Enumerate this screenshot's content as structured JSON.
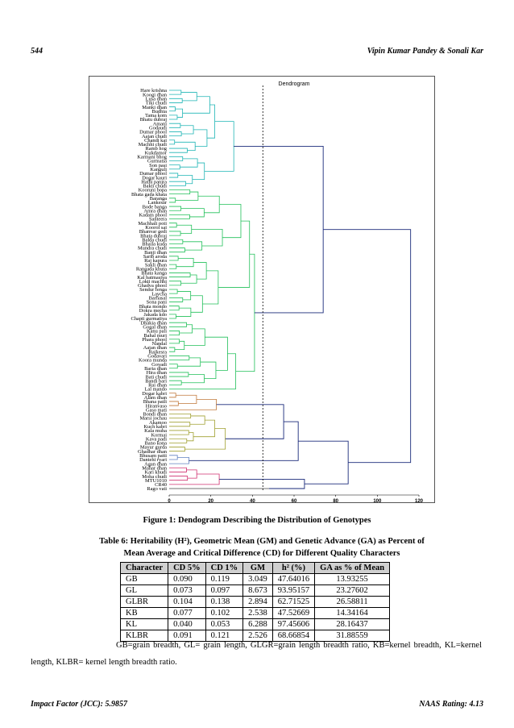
{
  "header": {
    "page_number": "544",
    "authors": "Vipin Kumar Pandey & Sonali Kar"
  },
  "figure": {
    "caption": "Figure 1: Dendogram Describing the Distribution of Genotypes",
    "chart_data": {
      "type": "dendrogram",
      "title": "Dendrogram",
      "xlabel": "Dissimilarity",
      "xlim": [
        0,
        120
      ],
      "x_ticks": [
        "0",
        "20",
        "40",
        "60",
        "80",
        "100",
        "120"
      ],
      "cut_line": 45,
      "clusters": [
        {
          "color": "#1fb5b5",
          "genotypes": [
            "Hare krishna",
            "Koogi dhan",
            "Lusa dhan",
            "Tiki chudi",
            "Manki dhan",
            "Budhia",
            "Tama kom",
            "Bhatu dubraj",
            "Amani",
            "Godaudi",
            "Dumar phool",
            "Aajan chudi",
            "Chandi kai",
            "Machhi chudi",
            "Ramb hog",
            "Kukdamor",
            "Karmani bhog",
            "Gurmatia",
            "Son pasi",
            "Kanguli",
            "Dumar phool",
            "Dogar kauri",
            "Hathi panjra",
            "Bakti chudi"
          ]
        },
        {
          "color": "#22c05a",
          "genotypes": [
            "Kooruni bopa",
            "Bhata gada khata",
            "Baranga",
            "Lankesar",
            "Bode banga",
            "Amra dhan",
            "Kadam phool",
            "Santeera",
            "Machhali poti",
            "Kooroi sai",
            "Bhanvar gedi",
            "Bhata dubraj",
            "Balda chudi",
            "Bhaila kuda",
            "Mundra chudi",
            "Banji dhan",
            "Sarib aroda",
            "Raj kapura",
            "Sakli dhan",
            "Rangada khuta",
            "Bhata kanga",
            "Kal batmasiya",
            "Lokti machhi",
            "Ghadva phool",
            "Sendur fenga",
            "Laycha",
            "Barhasal",
            "Sona pani",
            "Bhata mondo",
            "Dokra mecha",
            "Jakada kdo",
            "Chapti gurmatiya",
            "Dhakia dhan",
            "Gogal dhan",
            "Kanu pali",
            "Bahal muri",
            "Phara phool",
            "Nandal",
            "Aajan dhan",
            "Rajkesra",
            "Godavari",
            "Koora munda",
            "Govadi",
            "Baria dhan",
            "Hira dhan",
            "Bati chudi",
            "Bandi bari",
            "Rai dhan",
            "Lal mando"
          ]
        },
        {
          "color": "#c0783a",
          "genotypes": [
            "Dogar kabri",
            "Alam dhan",
            "Bhana patli",
            "Hiranvaso",
            "Gaso mati"
          ]
        },
        {
          "color": "#a0a030",
          "genotypes": [
            "Bondi dhan",
            "Marsi jochau",
            "Akamoo",
            "Kuch kabri",
            "Kala muha",
            "Kormai",
            "Kava padi",
            "Bano kona",
            "Mayur gurda",
            "Ghadhar dhan"
          ]
        },
        {
          "color": "#6080c0",
          "genotypes": [
            "Bhusam patti",
            "Dantehi ryari",
            "Agan dhan"
          ]
        },
        {
          "color": "#d03070",
          "genotypes": [
            "Mahar dhan",
            "Kari khudi",
            "Moha chudi",
            "MTU1010",
            "CR40"
          ]
        },
        {
          "color": "#404040",
          "genotypes": [
            "Rago vati"
          ]
        }
      ]
    }
  },
  "table": {
    "caption_line1": "Table 6: Heritability (H²), Geometric Mean (GM) and Genetic Advance (GA) as Percent of",
    "caption_line2": "Mean Average and Critical Difference (CD) for Different Quality Characters",
    "headers": [
      "Character",
      "CD 5%",
      "CD 1%",
      "GM",
      "h² (%)",
      "GA as % of Mean"
    ],
    "rows": [
      [
        "GB",
        "0.090",
        "0.119",
        "3.049",
        "47.64016",
        "13.93255"
      ],
      [
        "GL",
        "0.073",
        "0.097",
        "8.673",
        "93.95157",
        "23.27602"
      ],
      [
        "GLBR",
        "0.104",
        "0.138",
        "2.894",
        "62.71525",
        "26.58811"
      ],
      [
        "KB",
        "0.077",
        "0.102",
        "2.538",
        "47.52669",
        "14.34164"
      ],
      [
        "KL",
        "0.040",
        "0.053",
        "6.288",
        "97.45606",
        "28.16437"
      ],
      [
        "KLBR",
        "0.091",
        "0.121",
        "2.526",
        "68.66854",
        "31.88559"
      ]
    ],
    "footnote": "GB=grain breadth, GL= grain length, GLGR=grain length breadth ratio, KB=kernel breadth, KL=kernel length, KLBR= kernel length breadth ratio."
  },
  "footer": {
    "impact_factor": "Impact Factor (JCC): 5.9857",
    "naas_rating": "NAAS Rating: 4.13"
  }
}
